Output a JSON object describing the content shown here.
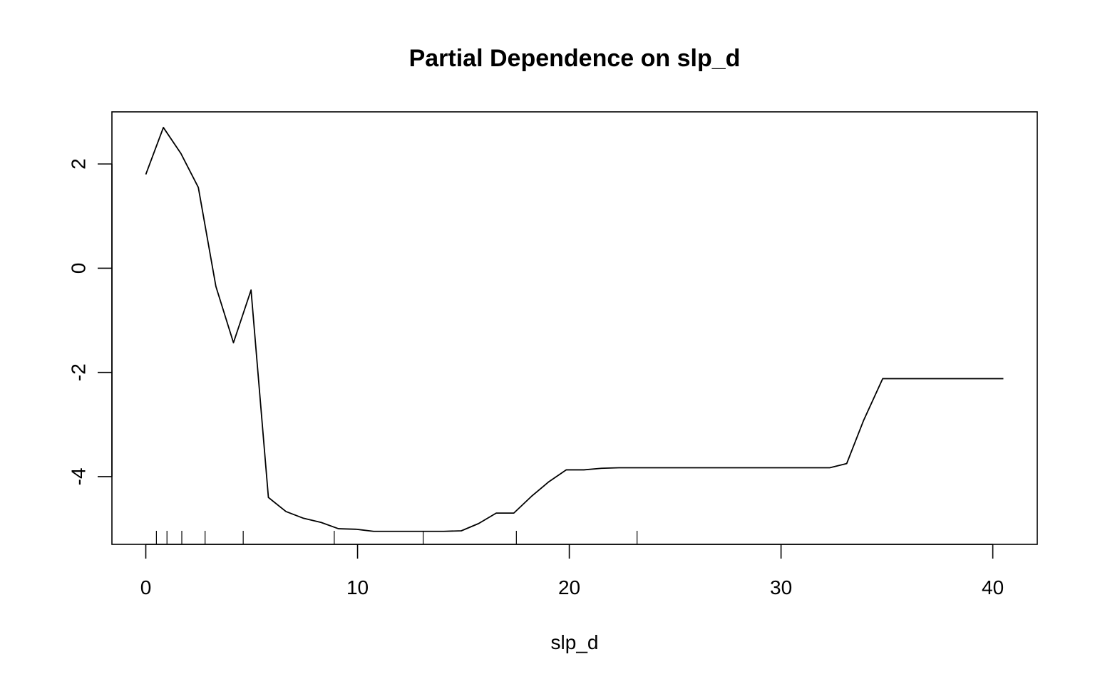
{
  "chart_data": {
    "type": "line",
    "title": "Partial Dependence on slp_d",
    "xlabel": "slp_d",
    "ylabel": "",
    "xlim": [
      -1.6,
      42.1
    ],
    "ylim": [
      -5.3,
      3.0
    ],
    "x_ticks": [
      0,
      10,
      20,
      30,
      40
    ],
    "x_tick_labels": [
      "0",
      "10",
      "20",
      "30",
      "40"
    ],
    "y_ticks": [
      -4,
      -2,
      0,
      2
    ],
    "y_tick_labels": [
      "-4",
      "-2",
      "0",
      "2"
    ],
    "grid": false,
    "legend": "none",
    "series": [
      {
        "x": [
          0,
          0.83,
          1.66,
          2.48,
          3.31,
          4.14,
          4.97,
          5.79,
          6.62,
          7.45,
          8.28,
          9.1,
          9.93,
          10.76,
          11.59,
          12.41,
          13.24,
          14.07,
          14.9,
          15.72,
          16.55,
          17.38,
          18.21,
          19.03,
          19.86,
          20.69,
          21.52,
          22.34,
          23.17,
          24.0,
          32.3,
          33.1,
          33.9,
          34.8,
          40.5
        ],
        "y": [
          1.8,
          2.7,
          2.2,
          1.55,
          -0.35,
          -1.43,
          -0.42,
          -4.4,
          -4.67,
          -4.8,
          -4.88,
          -5.0,
          -5.01,
          -5.05,
          -5.05,
          -5.05,
          -5.05,
          -5.05,
          -5.04,
          -4.9,
          -4.7,
          -4.7,
          -4.38,
          -4.1,
          -3.87,
          -3.87,
          -3.84,
          -3.83,
          -3.83,
          -3.83,
          -3.83,
          -3.75,
          -2.92,
          -2.12,
          -2.12
        ]
      }
    ],
    "rug": [
      0.5,
      1.0,
      1.7,
      2.8,
      4.6,
      8.9,
      13.1,
      17.5,
      23.2
    ],
    "line_color": "#000000"
  }
}
